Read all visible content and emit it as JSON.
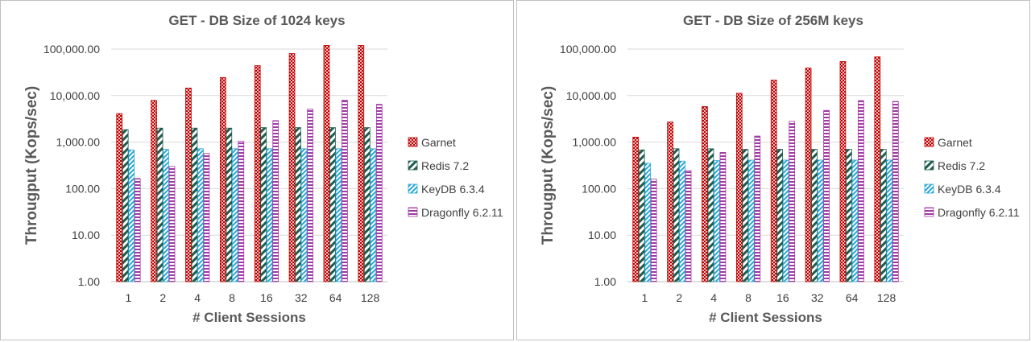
{
  "chart_data": [
    {
      "type": "bar",
      "title": "GET - DB Size of 1024 keys",
      "xlabel": "# Client Sessions",
      "ylabel": "Througput (Kops/sec)",
      "yscale": "log",
      "ylim": [
        1,
        100000
      ],
      "yticks": [
        "1.00",
        "10.00",
        "100.00",
        "1,000.00",
        "10,000.00",
        "100,000.00"
      ],
      "categories": [
        "1",
        "2",
        "4",
        "8",
        "16",
        "32",
        "64",
        "128"
      ],
      "legend_position": "right",
      "series": [
        {
          "name": "Garnet",
          "values": [
            4100,
            7900,
            14500,
            24500,
            44000,
            80000,
            120000,
            120000
          ]
        },
        {
          "name": "Redis 7.2",
          "values": [
            1850,
            2000,
            2000,
            2000,
            2050,
            2050,
            2050,
            2050
          ]
        },
        {
          "name": "KeyDB 6.3.4",
          "values": [
            680,
            700,
            720,
            720,
            720,
            720,
            720,
            720
          ]
        },
        {
          "name": "Dragonfly 6.2.11",
          "values": [
            165,
            300,
            570,
            1050,
            2900,
            5100,
            8000,
            6500
          ]
        }
      ]
    },
    {
      "type": "bar",
      "title": "GET - DB Size of 256M keys",
      "xlabel": "# Client Sessions",
      "ylabel": "Througput (Kops/sec)",
      "yscale": "log",
      "ylim": [
        1,
        100000
      ],
      "yticks": [
        "1.00",
        "10.00",
        "100.00",
        "1,000.00",
        "10,000.00",
        "100,000.00"
      ],
      "categories": [
        "1",
        "2",
        "4",
        "8",
        "16",
        "32",
        "64",
        "128"
      ],
      "legend_position": "right",
      "series": [
        {
          "name": "Garnet",
          "values": [
            1280,
            2700,
            5800,
            11200,
            21500,
            39000,
            54000,
            68000
          ]
        },
        {
          "name": "Redis 7.2",
          "values": [
            680,
            720,
            720,
            700,
            700,
            700,
            700,
            700
          ]
        },
        {
          "name": "KeyDB 6.3.4",
          "values": [
            350,
            390,
            400,
            410,
            410,
            410,
            410,
            410
          ]
        },
        {
          "name": "Dragonfly 6.2.11",
          "values": [
            160,
            245,
            600,
            1350,
            2800,
            4800,
            7800,
            7500
          ]
        }
      ]
    }
  ],
  "colors": {
    "garnet": "#c00000",
    "redis": "#1e5c4e",
    "keydb": "#2aa7d6",
    "dragonfly": "#a23aa6",
    "grid": "#d9d9d9",
    "text": "#404040"
  }
}
